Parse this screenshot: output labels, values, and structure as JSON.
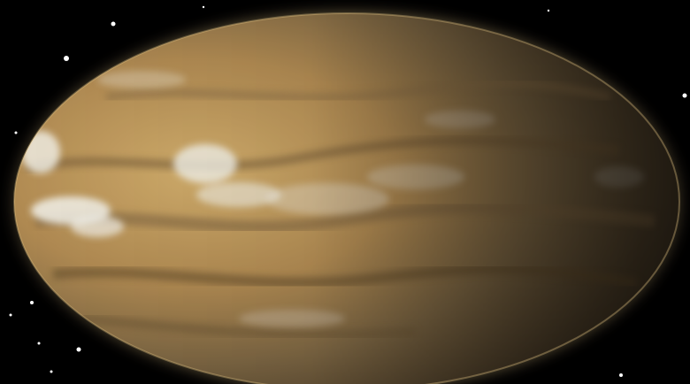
{
  "scene": {
    "subject": "planet-icon",
    "colors": {
      "space": "#000000",
      "planet_lit": "#c9a464",
      "planet_mid": "#8a7048",
      "planet_shadow": "#3a2f1f",
      "cloud": "#f2f1ea",
      "rim_glow": "#e8c888",
      "star": "#ffffff"
    }
  }
}
